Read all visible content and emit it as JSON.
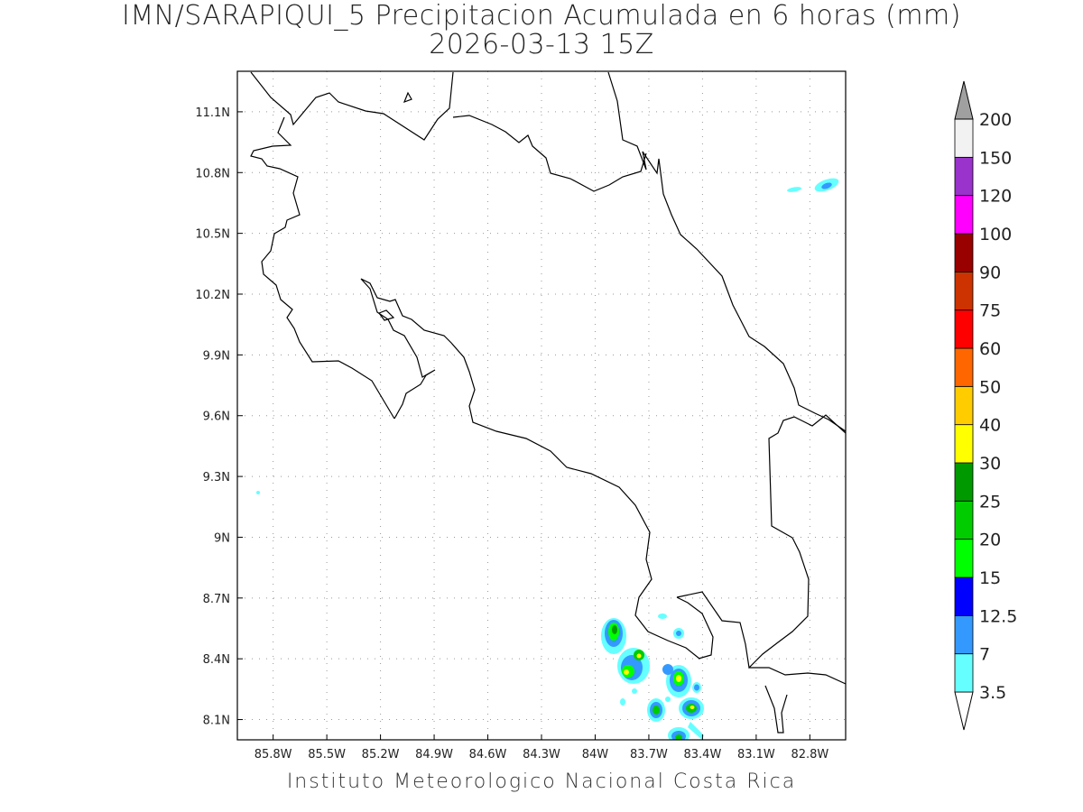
{
  "title": {
    "line1": "IMN/SARAPIQUI_5 Precipitacion Acumulada en 6 horas (mm)",
    "line2": "2026-03-13 15Z"
  },
  "footer": "Instituto Meteorologico Nacional Costa Rica",
  "map": {
    "lon_range": [
      -86.0,
      -82.6
    ],
    "lat_range": [
      8.0,
      11.3
    ],
    "lon_ticks": [
      {
        "value": -85.8,
        "label": "85.8W"
      },
      {
        "value": -85.5,
        "label": "85.5W"
      },
      {
        "value": -85.2,
        "label": "85.2W"
      },
      {
        "value": -84.9,
        "label": "84.9W"
      },
      {
        "value": -84.6,
        "label": "84.6W"
      },
      {
        "value": -84.3,
        "label": "84.3W"
      },
      {
        "value": -84.0,
        "label": "84W"
      },
      {
        "value": -83.7,
        "label": "83.7W"
      },
      {
        "value": -83.4,
        "label": "83.4W"
      },
      {
        "value": -83.1,
        "label": "83.1W"
      },
      {
        "value": -82.8,
        "label": "82.8W"
      }
    ],
    "lat_ticks": [
      {
        "value": 11.1,
        "label": "11.1N"
      },
      {
        "value": 10.8,
        "label": "10.8N"
      },
      {
        "value": 10.5,
        "label": "10.5N"
      },
      {
        "value": 10.2,
        "label": "10.2N"
      },
      {
        "value": 9.9,
        "label": "9.9N"
      },
      {
        "value": 9.6,
        "label": "9.6N"
      },
      {
        "value": 9.3,
        "label": "9.3N"
      },
      {
        "value": 9.0,
        "label": "9N"
      },
      {
        "value": 8.7,
        "label": "8.7N"
      },
      {
        "value": 8.4,
        "label": "8.4N"
      },
      {
        "value": 8.1,
        "label": "8.1N"
      }
    ],
    "grid": true
  },
  "colorbar": {
    "labels": [
      "3.5",
      "7",
      "12.5",
      "15",
      "20",
      "25",
      "30",
      "40",
      "50",
      "60",
      "75",
      "90",
      "100",
      "120",
      "150",
      "200"
    ],
    "colors": [
      "#66ffff",
      "#3399ff",
      "#0000ff",
      "#00ff00",
      "#00cc00",
      "#009900",
      "#ffff00",
      "#ffcc00",
      "#ff6600",
      "#ff0000",
      "#cc3300",
      "#990000",
      "#ff00ff",
      "#9933cc",
      "#f2f2f2",
      "#a0a0a0"
    ]
  }
}
